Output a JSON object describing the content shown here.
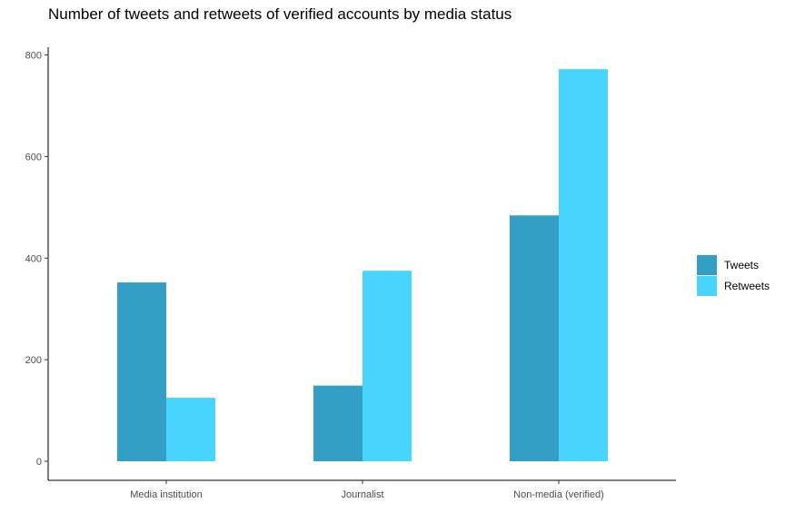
{
  "chart_data": {
    "type": "bar",
    "title": "Number of tweets and retweets of verified accounts by media status",
    "xlabel": "",
    "ylabel": "",
    "categories": [
      "Media institution",
      "Journalist",
      "Non-media (verified)"
    ],
    "series": [
      {
        "name": "Tweets",
        "color": "#339ec6",
        "values": [
          352,
          149,
          484
        ]
      },
      {
        "name": "Retweets",
        "color": "#47d5fd",
        "values": [
          125,
          375,
          772
        ]
      }
    ],
    "ylim": [
      0,
      810
    ],
    "yticks": [
      0,
      200,
      400,
      600,
      800
    ],
    "grid": false,
    "legend_position": "right"
  }
}
